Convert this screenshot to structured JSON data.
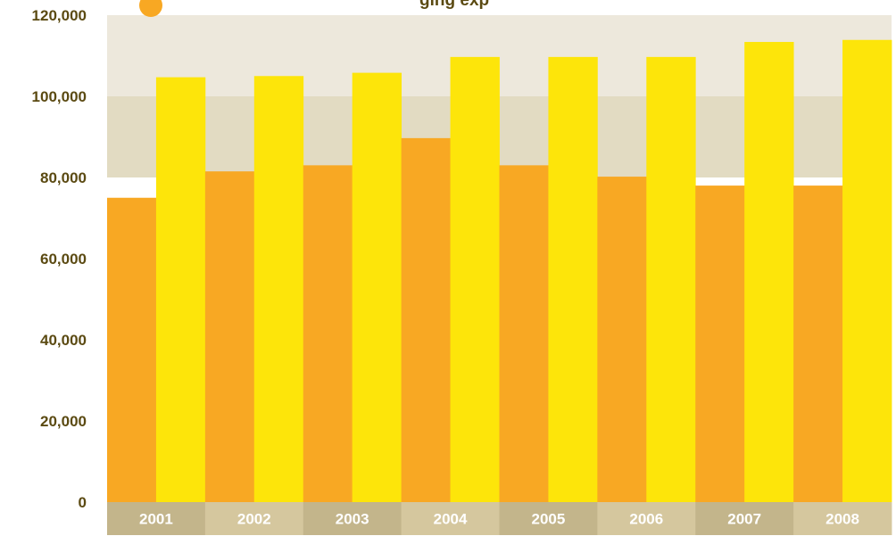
{
  "chart_data": {
    "type": "bar",
    "title_fragment": "ging exp",
    "categories": [
      "2001",
      "2002",
      "2003",
      "2004",
      "2005",
      "2006",
      "2007",
      "2008"
    ],
    "series": [
      {
        "values": [
          75000,
          81500,
          83000,
          89700,
          83000,
          80200,
          78000,
          78000
        ]
      },
      {
        "values": [
          104700,
          105000,
          105800,
          109700,
          109700,
          109700,
          113400,
          113900
        ]
      }
    ],
    "y_ticks": [
      "0",
      "20,000",
      "40,000",
      "60,000",
      "80,000",
      "100,000",
      "120,000"
    ],
    "ylim": [
      0,
      120000
    ],
    "bands": [
      {
        "from": 100000,
        "to": 120000
      },
      {
        "from": 80000,
        "to": 100000
      }
    ],
    "legend": "none",
    "grid": false
  },
  "colors": {
    "series_1": "#f8a823",
    "series_2": "#fde50a",
    "band_top": "#ede8dc",
    "band_mid": "#e2dbc2",
    "axis_cell_dark": "#c3b58b",
    "axis_cell_light": "#d5c79e",
    "tick_text": "#5b4a12",
    "title_marker": "#f8a823"
  }
}
